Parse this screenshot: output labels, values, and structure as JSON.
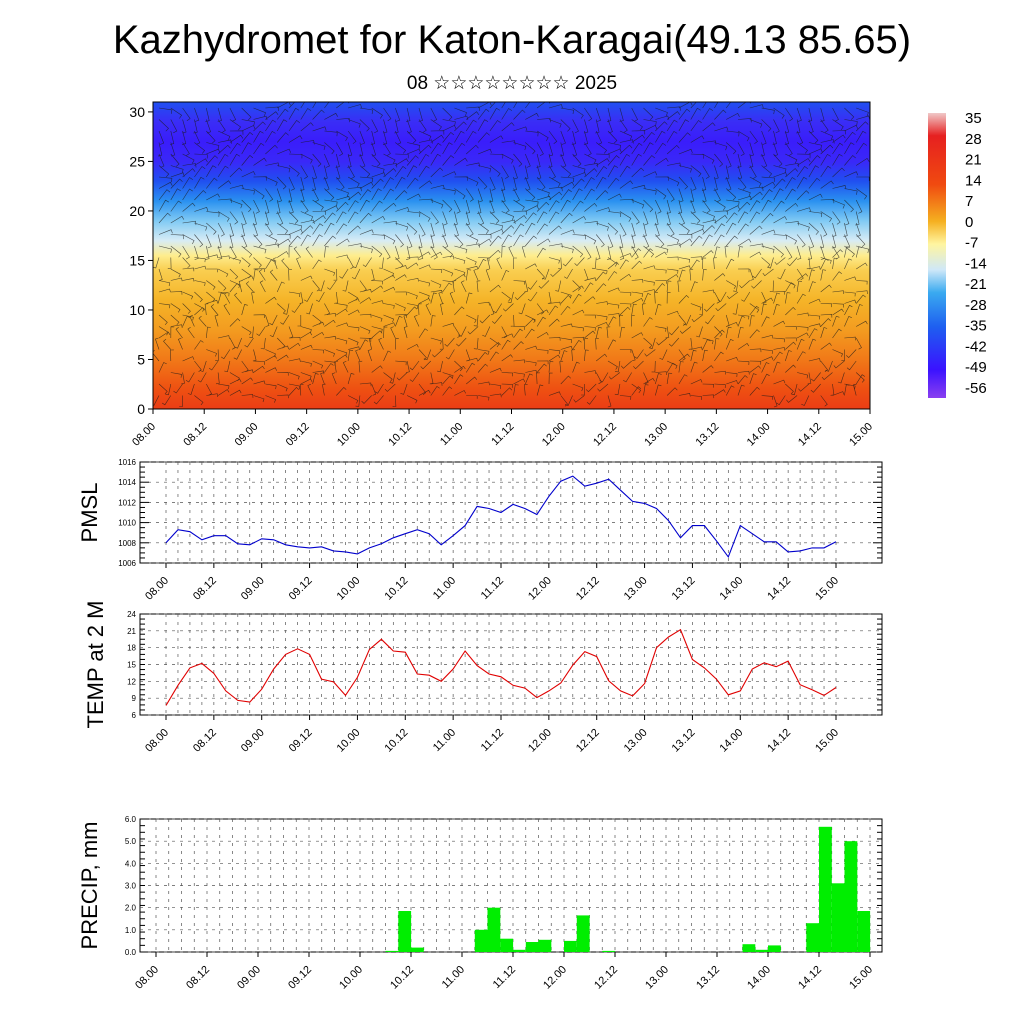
{
  "header": {
    "title": "Kazhydromet for Katon-Karagai(49.13 85.65)",
    "subtitle": "08 ☆☆☆☆☆☆☆☆ 2025"
  },
  "chart_data": [
    {
      "type": "heatmap",
      "name": "upper-air cross section",
      "x_ticks": [
        "08.00",
        "08.12",
        "09.00",
        "09.12",
        "10.00",
        "10.12",
        "11.00",
        "11.12",
        "12.00",
        "12.12",
        "13.00",
        "13.12",
        "14.00",
        "14.12",
        "15.00"
      ],
      "y_ticks": [
        0,
        5,
        10,
        15,
        20,
        25,
        30
      ],
      "ylim": [
        0,
        31
      ],
      "colorbar_labels": [
        "35",
        "28",
        "21",
        "14",
        "7",
        "0",
        "-7",
        "-14",
        "-21",
        "-28",
        "-35",
        "-42",
        "-49",
        "-56"
      ],
      "vertical_profile": {
        "height": [
          0,
          2,
          5,
          8,
          11,
          14,
          15.5,
          17,
          19,
          21,
          23,
          25,
          27,
          29,
          31
        ],
        "value": [
          24,
          21,
          16,
          11,
          7,
          2,
          -5,
          -14,
          -22,
          -32,
          -42,
          -52,
          -56,
          -50,
          -42
        ]
      },
      "overlay": "wind barbs",
      "colors": {
        "warm": "#e8231a",
        "mid": "#fff5a0",
        "cold": "#3a12ff"
      }
    },
    {
      "type": "line",
      "name": "pmsl",
      "ylabel": "PMSL",
      "x_ticks": [
        "08.00",
        "08.12",
        "09.00",
        "09.12",
        "10.00",
        "10.12",
        "11.00",
        "11.12",
        "12.00",
        "12.12",
        "13.00",
        "13.12",
        "14.00",
        "14.12",
        "15.00"
      ],
      "ylim": [
        1006,
        1016
      ],
      "y_ticks": [
        1006,
        1008,
        1010,
        1012,
        1014,
        1016
      ],
      "step_hours": 3,
      "color": "#0000cc",
      "values": [
        1008.0,
        1009.3,
        1009.1,
        1008.3,
        1008.7,
        1008.7,
        1007.9,
        1007.8,
        1008.4,
        1008.3,
        1007.8,
        1007.6,
        1007.5,
        1007.6,
        1007.2,
        1007.1,
        1006.9,
        1007.5,
        1007.9,
        1008.5,
        1008.9,
        1009.3,
        1008.9,
        1007.8,
        1008.7,
        1009.7,
        1011.6,
        1011.4,
        1011.0,
        1011.8,
        1011.4,
        1010.8,
        1012.6,
        1014.1,
        1014.6,
        1013.6,
        1013.9,
        1014.3,
        1013.2,
        1012.1,
        1011.9,
        1011.4,
        1010.2,
        1008.5,
        1009.7,
        1009.7,
        1008.2,
        1006.6,
        1009.7,
        1008.9,
        1008.1,
        1008.1,
        1007.1,
        1007.2,
        1007.5,
        1007.5,
        1008.1
      ]
    },
    {
      "type": "line",
      "name": "temp2m",
      "ylabel": "TEMP at 2 M",
      "x_ticks": [
        "08.00",
        "08.12",
        "09.00",
        "09.12",
        "10.00",
        "10.12",
        "11.00",
        "11.12",
        "12.00",
        "12.12",
        "13.00",
        "13.12",
        "14.00",
        "14.12",
        "15.00"
      ],
      "ylim": [
        6,
        24
      ],
      "y_ticks": [
        6,
        9,
        12,
        15,
        18,
        21,
        24
      ],
      "step_hours": 3,
      "color": "#e00000",
      "values": [
        7.7,
        11.3,
        14.4,
        15.2,
        13.4,
        10.3,
        8.6,
        8.3,
        10.6,
        14.2,
        16.8,
        17.8,
        16.8,
        12.4,
        11.9,
        9.5,
        12.7,
        17.7,
        19.5,
        17.4,
        17.2,
        13.3,
        13.1,
        12.0,
        14.2,
        17.4,
        14.8,
        13.3,
        12.8,
        11.3,
        10.8,
        9.1,
        10.3,
        11.7,
        14.9,
        17.3,
        16.4,
        12.1,
        10.3,
        9.4,
        11.6,
        18.0,
        19.9,
        21.2,
        15.9,
        14.4,
        12.4,
        9.6,
        10.3,
        14.2,
        15.3,
        14.6,
        15.6,
        11.4,
        10.5,
        9.5,
        10.9
      ]
    },
    {
      "type": "bar",
      "name": "precip",
      "ylabel": "PRECIP, mm",
      "x_ticks": [
        "08.00",
        "08.12",
        "09.00",
        "09.12",
        "10.00",
        "10.12",
        "11.00",
        "11.12",
        "12.00",
        "12.12",
        "13.00",
        "13.12",
        "14.00",
        "14.12",
        "15.00"
      ],
      "ylim": [
        0,
        6
      ],
      "y_ticks": [
        "0.0",
        "1.0",
        "2.0",
        "3.0",
        "4.0",
        "5.0",
        "6.0"
      ],
      "step_hours": 3,
      "color": "#00ee00",
      "values": [
        0,
        0,
        0,
        0,
        0,
        0,
        0,
        0,
        0,
        0,
        0,
        0,
        0,
        0,
        0,
        0,
        0,
        0,
        0.05,
        1.85,
        0.2,
        0,
        0,
        0,
        0,
        1.0,
        2.0,
        0.6,
        0.1,
        0.45,
        0.55,
        0,
        0.5,
        1.65,
        0,
        0.05,
        0,
        0,
        0,
        0,
        0,
        0,
        0,
        0,
        0,
        0,
        0.35,
        0.1,
        0.3,
        0,
        0,
        1.3,
        5.65,
        3.1,
        5.0,
        1.85
      ]
    }
  ]
}
